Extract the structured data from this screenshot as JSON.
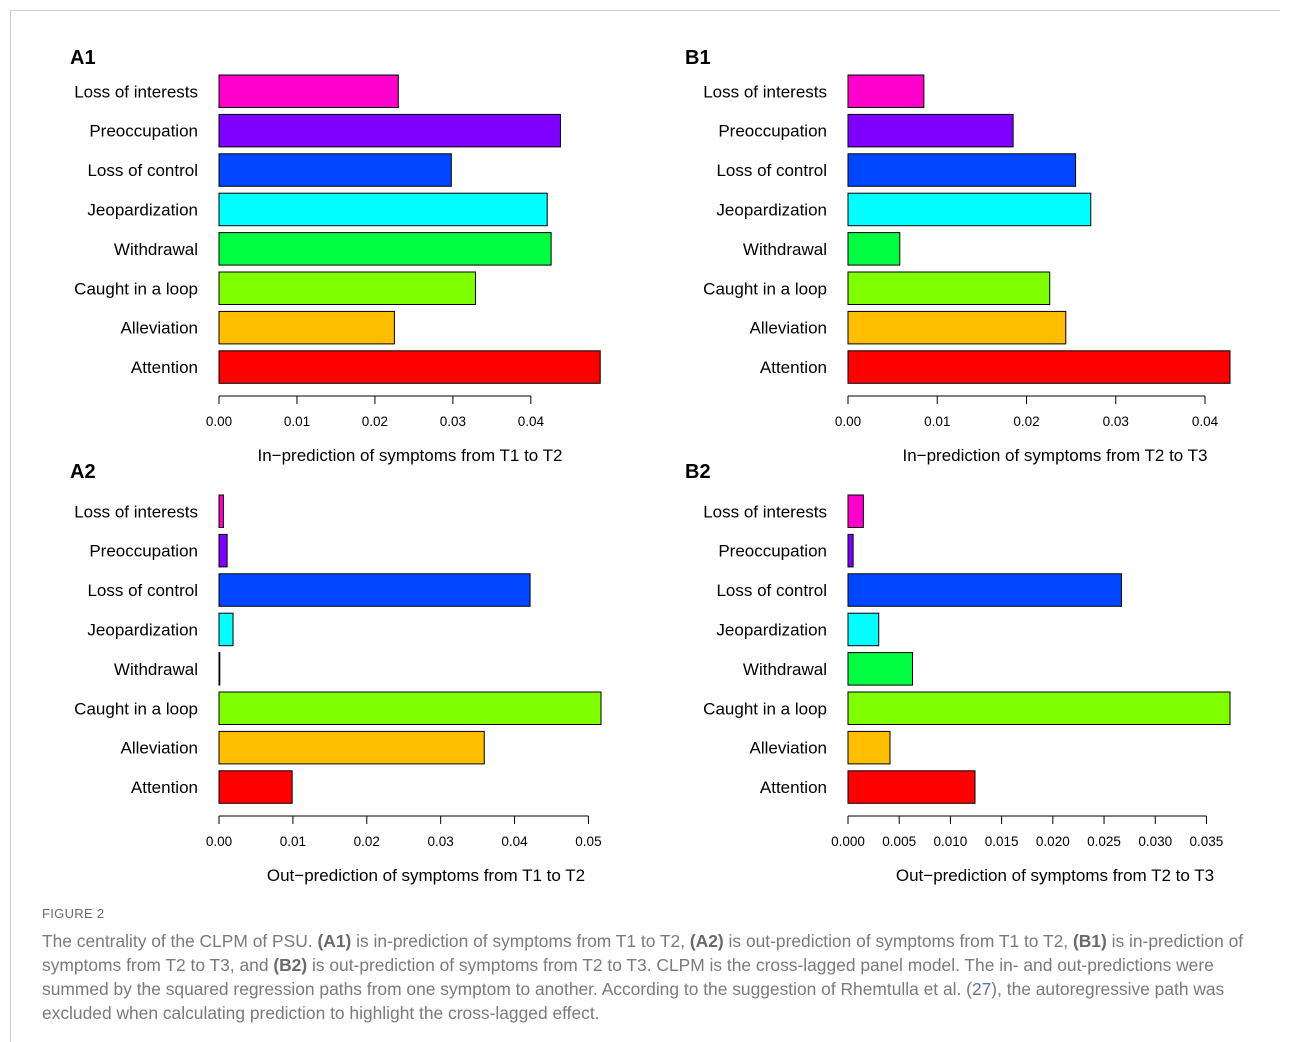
{
  "categories": [
    "Loss of  interests",
    "Preoccupation",
    "Loss of control",
    "Jeopardization",
    "Withdrawal",
    "Caught in a loop",
    "Alleviation",
    "Attention"
  ],
  "colors": [
    "#FF00CC",
    "#8000FF",
    "#0047FF",
    "#00FFFF",
    "#00FF40",
    "#80FF00",
    "#FFBF00",
    "#FF0000"
  ],
  "chart_data": [
    {
      "type": "bar",
      "panel": "A1",
      "orientation": "horizontal",
      "xlabel": "In−prediction of symptoms from T1 to T2",
      "values": [
        0.023,
        0.0438,
        0.0298,
        0.0421,
        0.0426,
        0.0329,
        0.0225,
        0.0489
      ],
      "xlim": [
        0,
        0.049
      ],
      "ticks": [
        0.0,
        0.01,
        0.02,
        0.03,
        0.04
      ],
      "tick_labels": [
        "0.00",
        "0.01",
        "0.02",
        "0.03",
        "0.04"
      ]
    },
    {
      "type": "bar",
      "panel": "B1",
      "orientation": "horizontal",
      "xlabel": "In−prediction of symptoms from T2 to T3",
      "values": [
        0.0085,
        0.0185,
        0.0255,
        0.0272,
        0.0058,
        0.0226,
        0.0244,
        0.0428
      ],
      "xlim": [
        0,
        0.0428
      ],
      "ticks": [
        0.0,
        0.01,
        0.02,
        0.03,
        0.04
      ],
      "tick_labels": [
        "0.00",
        "0.01",
        "0.02",
        "0.03",
        "0.04"
      ]
    },
    {
      "type": "bar",
      "panel": "A2",
      "orientation": "horizontal",
      "xlabel": "Out−prediction of symptoms from T1 to T2",
      "values": [
        0.0006,
        0.0011,
        0.0421,
        0.0019,
        0.0001,
        0.0517,
        0.0359,
        0.0099
      ],
      "xlim": [
        0,
        0.0517
      ],
      "ticks": [
        0.0,
        0.01,
        0.02,
        0.03,
        0.04,
        0.05
      ],
      "tick_labels": [
        "0.00",
        "0.01",
        "0.02",
        "0.03",
        "0.04",
        "0.05"
      ]
    },
    {
      "type": "bar",
      "panel": "B2",
      "orientation": "horizontal",
      "xlabel": "Out−prediction of symptoms from T2 to T3",
      "values": [
        0.0015,
        0.0005,
        0.0267,
        0.003,
        0.0063,
        0.0373,
        0.0041,
        0.0124
      ],
      "xlim": [
        0,
        0.0373
      ],
      "ticks": [
        0.0,
        0.005,
        0.01,
        0.015,
        0.02,
        0.025,
        0.03,
        0.035
      ],
      "tick_labels": [
        "0.000",
        "0.005",
        "0.010",
        "0.015",
        "0.020",
        "0.025",
        "0.030",
        "0.035"
      ]
    }
  ],
  "caption": {
    "label": "FIGURE 2",
    "p1": "The centrality of the CLPM of PSU. ",
    "b1": "(A1)",
    "p2": " is in-prediction of symptoms from T1 to T2, ",
    "b2": "(A2)",
    "p3": " is out-prediction of symptoms from T1 to T2, ",
    "b3": "(B1)",
    "p4": " is in-prediction of symptoms from T2 to T3, and ",
    "b4": "(B2)",
    "p5": " is out-prediction of symptoms from T2 to T3. CLPM is the cross-lagged panel model. The in- and out-predictions were summed by the squared regression paths from one symptom to another. According to the suggestion of Rhemtulla et al. (",
    "ref": "27",
    "p6": "), the autoregressive path was excluded when calculating prediction to highlight the cross-lagged effect."
  }
}
